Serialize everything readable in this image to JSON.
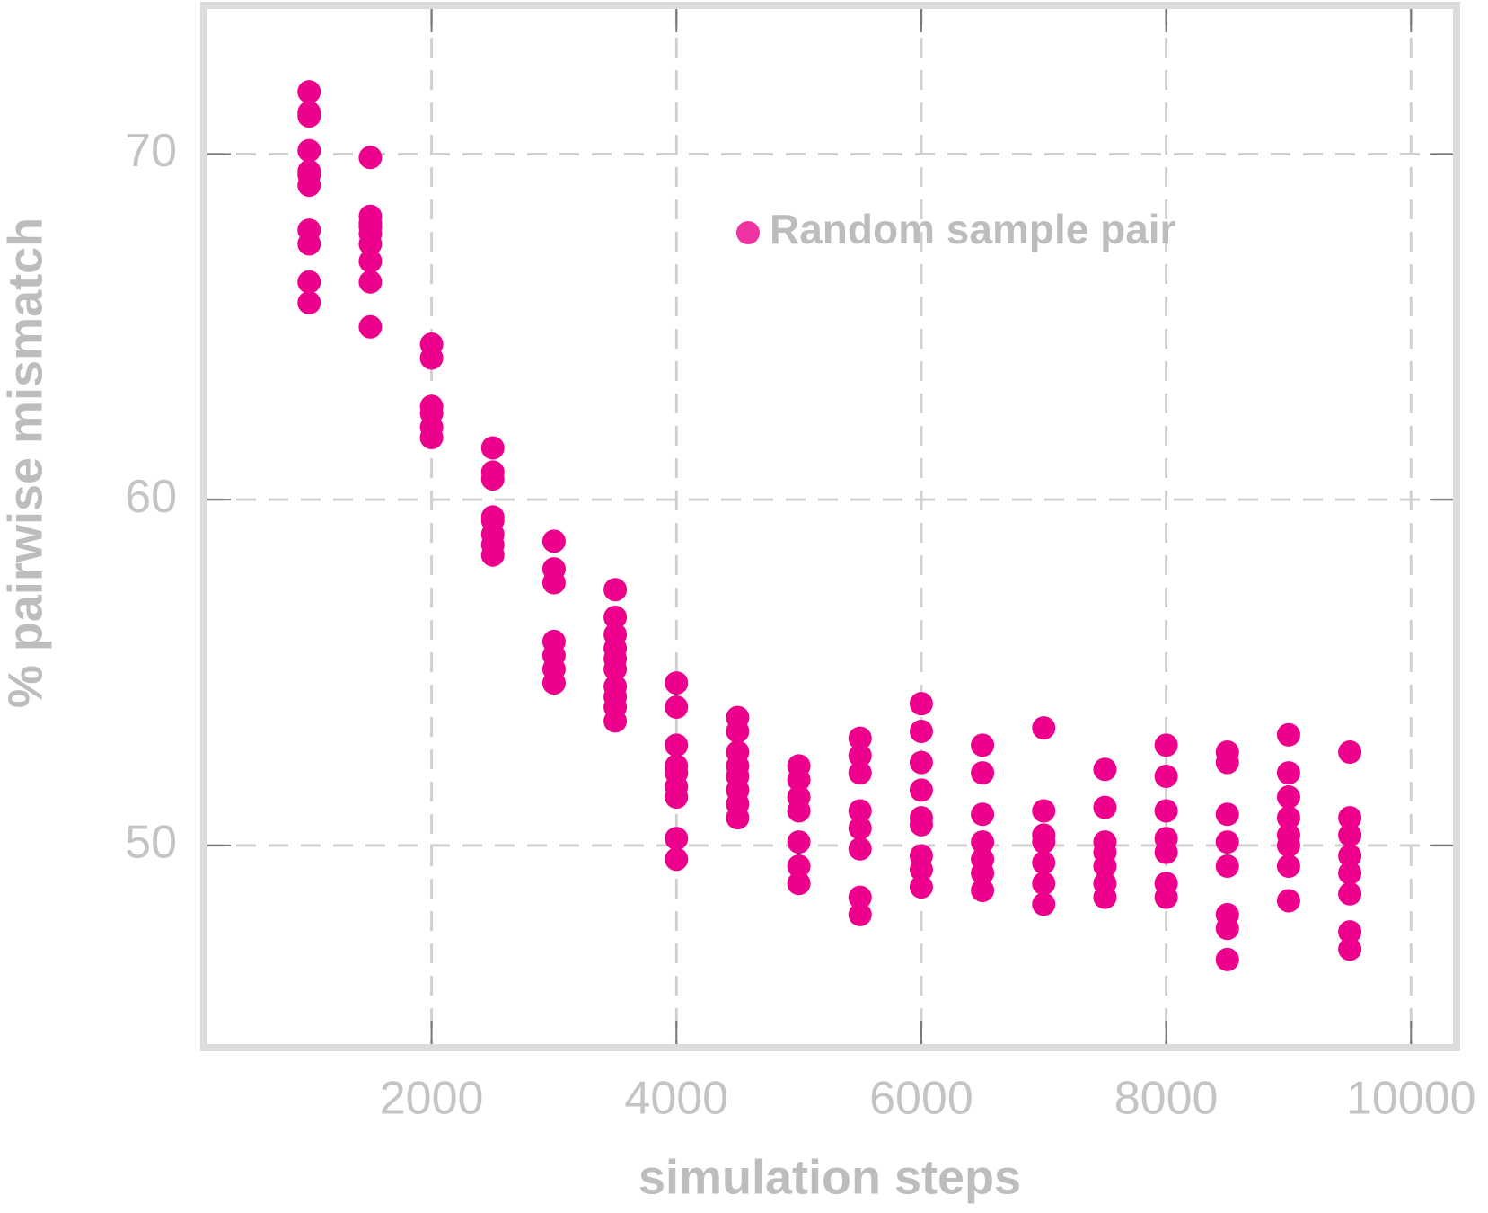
{
  "chart_data": {
    "type": "scatter",
    "x_label": "simulation steps",
    "y_label": "% pairwise mismatch",
    "xlim": [
      140,
      10372
    ],
    "ylim": [
      44.15,
      74.3
    ],
    "xticks": [
      2000,
      4000,
      6000,
      8000,
      10000
    ],
    "yticks": [
      50,
      60,
      70
    ],
    "grid": true,
    "legend": "upper right",
    "series": [
      {
        "name": "Random sample pair",
        "color": "#ec008c",
        "x": [
          1000,
          1000,
          1000,
          1000,
          1000,
          1000,
          1000,
          1000,
          1000,
          1000,
          1000,
          1500,
          1500,
          1500,
          1500,
          1500,
          1500,
          1500,
          1500,
          1500,
          2000,
          2000,
          2000,
          2000,
          2000,
          2000,
          2500,
          2500,
          2500,
          2500,
          2500,
          2500,
          2500,
          2500,
          3000,
          3000,
          3000,
          3000,
          3000,
          3000,
          3000,
          3500,
          3500,
          3500,
          3500,
          3500,
          3500,
          3500,
          3500,
          3500,
          3500,
          4000,
          4000,
          4000,
          4000,
          4000,
          4000,
          4000,
          4000,
          4000,
          4500,
          4500,
          4500,
          4500,
          4500,
          4500,
          4500,
          4500,
          5000,
          5000,
          5000,
          5000,
          5000,
          5000,
          5000,
          5500,
          5500,
          5500,
          5500,
          5500,
          5500,
          5500,
          5500,
          6000,
          6000,
          6000,
          6000,
          6000,
          6000,
          6000,
          6000,
          6000,
          6500,
          6500,
          6500,
          6500,
          6500,
          6500,
          6500,
          7000,
          7000,
          7000,
          7000,
          7000,
          7000,
          7000,
          7500,
          7500,
          7500,
          7500,
          7500,
          7500,
          7500,
          8000,
          8000,
          8000,
          8000,
          8000,
          8000,
          8000,
          8500,
          8500,
          8500,
          8500,
          8500,
          8500,
          8500,
          8500,
          9000,
          9000,
          9000,
          9000,
          9000,
          9000,
          9000,
          9000,
          9500,
          9500,
          9500,
          9500,
          9500,
          9500,
          9500,
          9500
        ],
        "y": [
          71.8,
          71.2,
          71.1,
          70.1,
          69.5,
          69.4,
          69.1,
          67.8,
          67.4,
          66.3,
          65.7,
          69.9,
          68.2,
          68.0,
          67.9,
          67.7,
          67.4,
          66.9,
          66.3,
          65.0,
          64.5,
          64.1,
          62.7,
          62.5,
          62.1,
          61.8,
          61.5,
          60.8,
          60.6,
          59.5,
          59.4,
          59.0,
          58.7,
          58.4,
          58.8,
          58.0,
          57.6,
          55.9,
          55.5,
          55.1,
          54.7,
          57.4,
          56.6,
          56.1,
          55.7,
          55.4,
          55.1,
          54.6,
          54.3,
          54.0,
          53.6,
          54.7,
          54.0,
          52.9,
          52.3,
          52.1,
          51.7,
          51.4,
          50.2,
          49.6,
          53.7,
          53.3,
          52.7,
          52.3,
          52.0,
          51.6,
          51.2,
          50.8,
          52.3,
          51.9,
          51.4,
          51.0,
          50.1,
          49.4,
          48.9,
          53.1,
          52.6,
          52.1,
          51.0,
          50.5,
          49.9,
          48.5,
          48.0,
          54.1,
          53.3,
          52.4,
          51.6,
          50.8,
          50.6,
          49.7,
          49.3,
          48.8,
          52.9,
          52.1,
          50.9,
          50.1,
          49.6,
          49.2,
          48.7,
          53.4,
          51.0,
          50.3,
          50.1,
          49.5,
          48.9,
          48.3,
          52.2,
          51.1,
          50.1,
          49.8,
          49.4,
          48.9,
          48.5,
          52.9,
          52.0,
          51.0,
          50.2,
          49.8,
          48.9,
          48.5,
          52.7,
          52.4,
          50.9,
          50.1,
          49.4,
          48.0,
          47.6,
          46.7,
          53.2,
          52.1,
          51.4,
          50.8,
          50.3,
          50.0,
          49.4,
          48.4,
          52.7,
          50.8,
          50.3,
          49.7,
          49.2,
          48.6,
          47.5,
          47.0
        ]
      }
    ]
  }
}
